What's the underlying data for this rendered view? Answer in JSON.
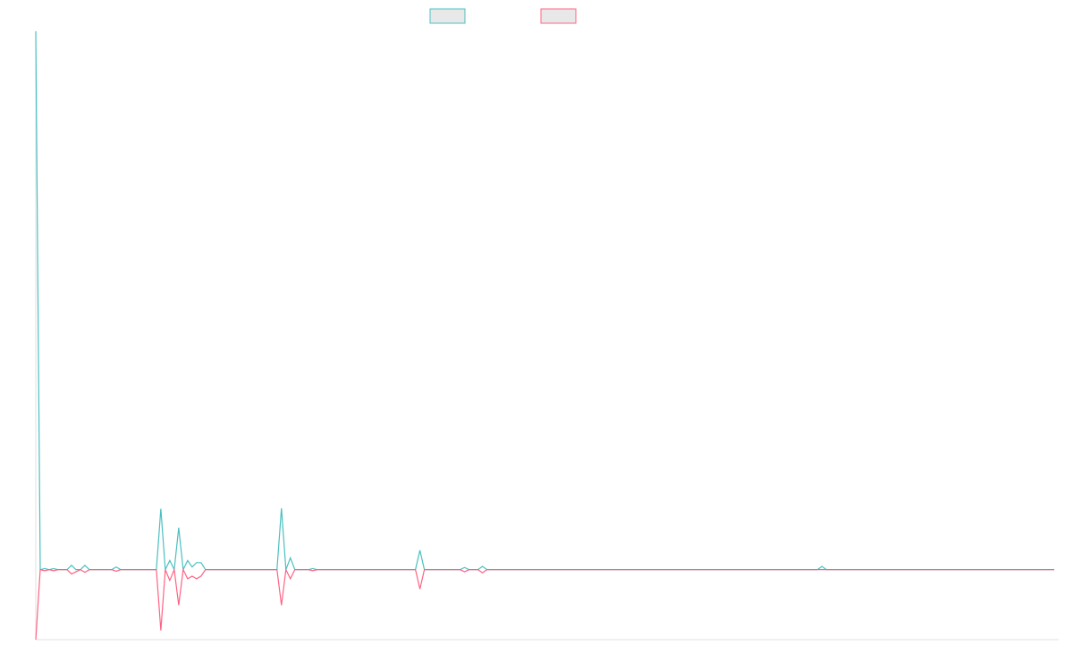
{
  "chart_data": {
    "type": "line",
    "ylim": [
      -13,
      100
    ],
    "series": [
      {
        "color": "#4bc0c0",
        "values": [
          100,
          0,
          0.2,
          0,
          0.2,
          0,
          0,
          0,
          0.8,
          0,
          0,
          0.8,
          0,
          0,
          0,
          0,
          0,
          0,
          0.5,
          0,
          0,
          0,
          0,
          0,
          0,
          0,
          0,
          0,
          11.3,
          0,
          1.7,
          0,
          7.8,
          0,
          1.7,
          0.5,
          1.3,
          1.3,
          0,
          0,
          0,
          0,
          0,
          0,
          0,
          0,
          0,
          0,
          0,
          0,
          0,
          0,
          0,
          0,
          0,
          11.4,
          0,
          2.2,
          0,
          0,
          0,
          0,
          0.2,
          0,
          0,
          0,
          0,
          0,
          0,
          0,
          0,
          0,
          0,
          0,
          0,
          0,
          0,
          0,
          0,
          0,
          0,
          0,
          0,
          0,
          0,
          0,
          3.6,
          0,
          0,
          0,
          0,
          0,
          0,
          0,
          0,
          0,
          0.4,
          0,
          0,
          0,
          0.6,
          0,
          0,
          0,
          0,
          0,
          0,
          0,
          0,
          0,
          0,
          0,
          0,
          0,
          0,
          0,
          0,
          0,
          0,
          0,
          0,
          0,
          0,
          0,
          0,
          0,
          0,
          0,
          0,
          0,
          0,
          0,
          0,
          0,
          0,
          0,
          0,
          0,
          0,
          0,
          0,
          0,
          0,
          0,
          0,
          0,
          0,
          0,
          0,
          0,
          0,
          0,
          0,
          0,
          0,
          0,
          0,
          0,
          0,
          0,
          0,
          0,
          0,
          0,
          0,
          0,
          0,
          0,
          0,
          0,
          0,
          0,
          0,
          0,
          0,
          0,
          0.6,
          0,
          0,
          0,
          0,
          0,
          0,
          0,
          0,
          0,
          0,
          0,
          0,
          0,
          0,
          0,
          0,
          0,
          0,
          0,
          0,
          0,
          0,
          0,
          0,
          0,
          0,
          0,
          0,
          0,
          0,
          0,
          0,
          0,
          0,
          0,
          0,
          0,
          0,
          0,
          0,
          0,
          0,
          0,
          0,
          0,
          0,
          0,
          0,
          0,
          0,
          0,
          0
        ]
      },
      {
        "color": "#ff6384",
        "values": [
          -13,
          0,
          -0.2,
          0,
          -0.2,
          0,
          0,
          0,
          -0.8,
          -0.4,
          0,
          -0.5,
          0,
          0,
          0,
          0,
          0,
          0,
          -0.3,
          0,
          0,
          0,
          0,
          0,
          0,
          0,
          0,
          0,
          -11.3,
          0,
          -2,
          0,
          -6.6,
          0,
          -1.7,
          -1.2,
          -1.7,
          -1.2,
          0,
          0,
          0,
          0,
          0,
          0,
          0,
          0,
          0,
          0,
          0,
          0,
          0,
          0,
          0,
          0,
          0,
          -6.6,
          0,
          -1.7,
          0,
          0,
          0,
          0,
          -0.2,
          0,
          0,
          0,
          0,
          0,
          0,
          0,
          0,
          0,
          0,
          0,
          0,
          0,
          0,
          0,
          0,
          0,
          0,
          0,
          0,
          0,
          0,
          0,
          -3.6,
          0,
          0,
          0,
          0,
          0,
          0,
          0,
          0,
          0,
          -0.4,
          0,
          0,
          0,
          -0.6,
          0,
          0,
          0,
          0,
          0,
          0,
          0,
          0,
          0,
          0,
          0,
          0,
          0,
          0,
          0,
          0,
          0,
          0,
          0,
          0,
          0,
          0,
          0,
          0,
          0,
          0,
          0,
          0,
          0,
          0,
          0,
          0,
          0,
          0,
          0,
          0,
          0,
          0,
          0,
          0,
          0,
          0,
          0,
          0,
          0,
          0,
          0,
          0,
          0,
          0,
          0,
          0,
          0,
          0,
          0,
          0,
          0,
          0,
          0,
          0,
          0,
          0,
          0,
          0,
          0,
          0,
          0,
          0,
          0,
          0,
          0,
          0,
          0,
          0,
          0,
          0,
          0,
          0,
          0,
          0,
          0,
          0,
          0,
          0,
          0,
          0,
          0,
          0,
          0,
          0,
          0,
          0,
          0,
          0,
          0,
          0,
          0,
          0,
          0,
          0,
          0,
          0,
          0,
          0,
          0,
          0,
          0,
          0,
          0,
          0,
          0,
          0,
          0,
          0,
          0,
          0,
          0,
          0,
          0,
          0,
          0,
          0,
          0,
          0,
          0,
          0,
          0,
          0
        ]
      }
    ]
  }
}
